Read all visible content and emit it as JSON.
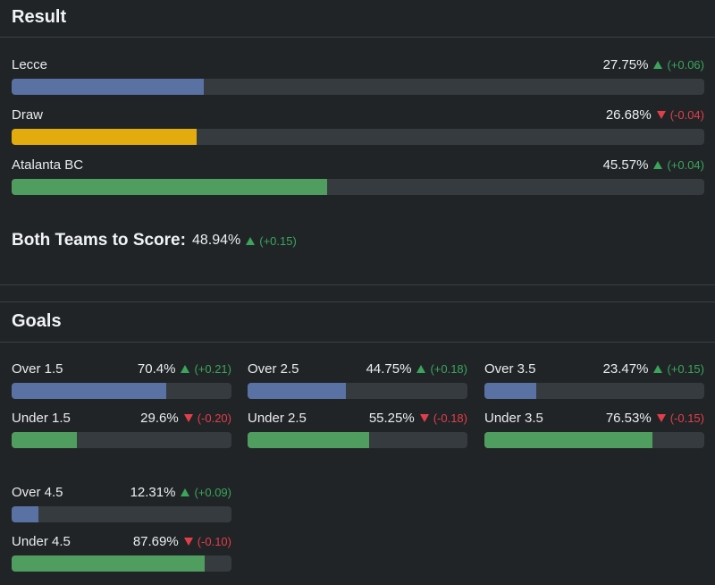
{
  "result": {
    "title": "Result",
    "rows": [
      {
        "label": "Lecce",
        "pct": "27.75%",
        "dir": "up",
        "delta": "(+0.06)",
        "fill": 0.2775,
        "color": "#5a71a3"
      },
      {
        "label": "Draw",
        "pct": "26.68%",
        "dir": "down",
        "delta": "(-0.04)",
        "fill": 0.2668,
        "color": "#e2ac0f"
      },
      {
        "label": "Atalanta BC",
        "pct": "45.57%",
        "dir": "up",
        "delta": "(+0.04)",
        "fill": 0.4557,
        "color": "#4f9e5f"
      }
    ]
  },
  "btts": {
    "label": "Both Teams to Score:",
    "pct": "48.94%",
    "dir": "up",
    "delta": "(+0.15)"
  },
  "goals": {
    "title": "Goals",
    "rows": [
      {
        "label": "Over 1.5",
        "pct": "70.4%",
        "dir": "up",
        "delta": "(+0.21)",
        "fill": 0.704,
        "color": "#5a71a3"
      },
      {
        "label": "Over 2.5",
        "pct": "44.75%",
        "dir": "up",
        "delta": "(+0.18)",
        "fill": 0.4475,
        "color": "#5a71a3"
      },
      {
        "label": "Over 3.5",
        "pct": "23.47%",
        "dir": "up",
        "delta": "(+0.15)",
        "fill": 0.2347,
        "color": "#5a71a3"
      },
      {
        "label": "Under 1.5",
        "pct": "29.6%",
        "dir": "down",
        "delta": "(-0.20)",
        "fill": 0.296,
        "color": "#4f9e5f"
      },
      {
        "label": "Under 2.5",
        "pct": "55.25%",
        "dir": "down",
        "delta": "(-0.18)",
        "fill": 0.5525,
        "color": "#4f9e5f"
      },
      {
        "label": "Under 3.5",
        "pct": "76.53%",
        "dir": "down",
        "delta": "(-0.15)",
        "fill": 0.7653,
        "color": "#4f9e5f"
      },
      {
        "label": "Over 4.5",
        "pct": "12.31%",
        "dir": "up",
        "delta": "(+0.09)",
        "fill": 0.1231,
        "color": "#5a71a3"
      },
      {
        "label": "Under 4.5",
        "pct": "87.69%",
        "dir": "down",
        "delta": "(-0.10)",
        "fill": 0.8769,
        "color": "#4f9e5f"
      }
    ]
  }
}
